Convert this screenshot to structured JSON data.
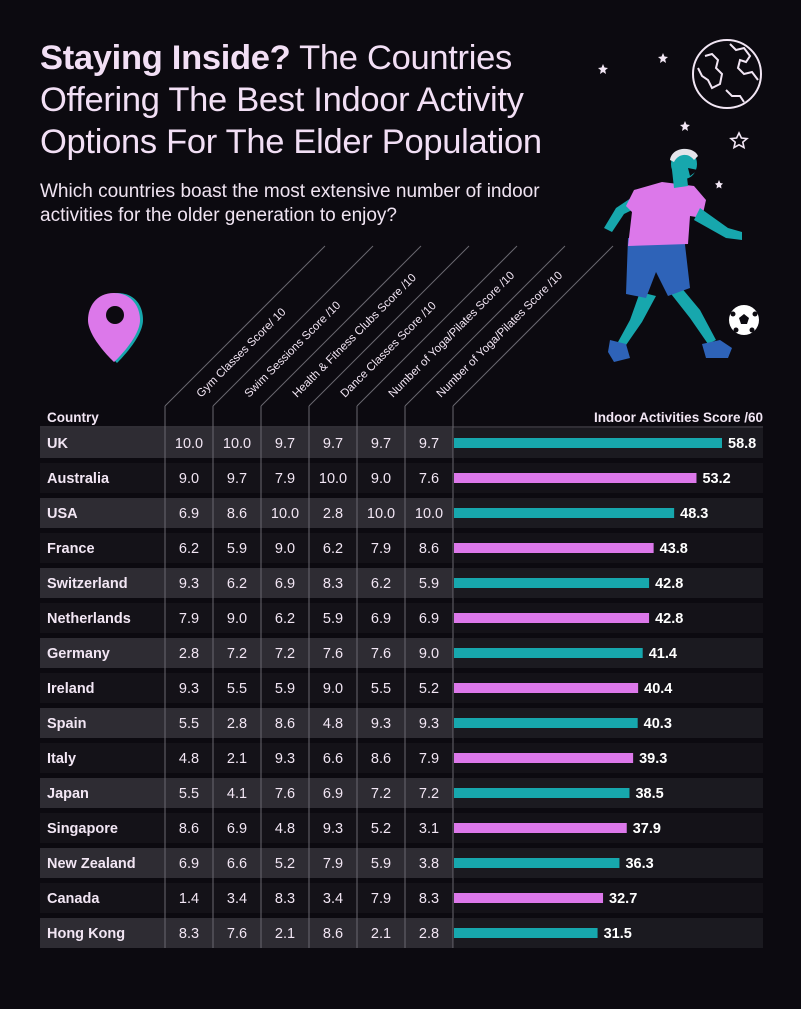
{
  "title": {
    "bold": "Staying Inside?",
    "rest": "The Countries Offering The Best Indoor Activity Options For The Elder Population"
  },
  "subtitle": "Which countries boast the most extensive number of indoor activities for the older generation to enjoy?",
  "colors": {
    "background": "#0c0a10",
    "teal": "#17a7ad",
    "pink": "#dc78ea",
    "row_even": "#2e2c33",
    "row_odd": "#141218",
    "text": "#f2e6f4"
  },
  "chart_data": {
    "type": "table",
    "title": "Indoor Activities Score /60",
    "country_header": "Country",
    "score_header": "Indoor Activities Score /60",
    "columns": [
      "Gym Classes Score/ 10",
      "Swim Sessions Score /10",
      "Health & Fitness Clubs Score /10",
      "Dance Classes Score /10",
      "Number of Yoga/Pilates Score /10",
      "Number of Yoga/Pilates Score /10"
    ],
    "bar_max": 60,
    "rows": [
      {
        "country": "UK",
        "values": [
          "10.0",
          "10.0",
          "9.7",
          "9.7",
          "9.7",
          "9.7"
        ],
        "total": 58.8,
        "total_label": "58.8"
      },
      {
        "country": "Australia",
        "values": [
          "9.0",
          "9.7",
          "7.9",
          "10.0",
          "9.0",
          "7.6"
        ],
        "total": 53.2,
        "total_label": "53.2"
      },
      {
        "country": "USA",
        "values": [
          "6.9",
          "8.6",
          "10.0",
          "2.8",
          "10.0",
          "10.0"
        ],
        "total": 48.3,
        "total_label": "48.3"
      },
      {
        "country": "France",
        "values": [
          "6.2",
          "5.9",
          "9.0",
          "6.2",
          "7.9",
          "8.6"
        ],
        "total": 43.8,
        "total_label": "43.8"
      },
      {
        "country": "Switzerland",
        "values": [
          "9.3",
          "6.2",
          "6.9",
          "8.3",
          "6.2",
          "5.9"
        ],
        "total": 42.8,
        "total_label": "42.8"
      },
      {
        "country": "Netherlands",
        "values": [
          "7.9",
          "9.0",
          "6.2",
          "5.9",
          "6.9",
          "6.9"
        ],
        "total": 42.8,
        "total_label": "42.8"
      },
      {
        "country": "Germany",
        "values": [
          "2.8",
          "7.2",
          "7.2",
          "7.6",
          "7.6",
          "9.0"
        ],
        "total": 41.4,
        "total_label": "41.4"
      },
      {
        "country": "Ireland",
        "values": [
          "9.3",
          "5.5",
          "5.9",
          "9.0",
          "5.5",
          "5.2"
        ],
        "total": 40.4,
        "total_label": "40.4"
      },
      {
        "country": "Spain",
        "values": [
          "5.5",
          "2.8",
          "8.6",
          "4.8",
          "9.3",
          "9.3"
        ],
        "total": 40.3,
        "total_label": "40.3"
      },
      {
        "country": "Italy",
        "values": [
          "4.8",
          "2.1",
          "9.3",
          "6.6",
          "8.6",
          "7.9"
        ],
        "total": 39.3,
        "total_label": "39.3"
      },
      {
        "country": "Japan",
        "values": [
          "5.5",
          "4.1",
          "7.6",
          "6.9",
          "7.2",
          "7.2"
        ],
        "total": 38.5,
        "total_label": "38.5"
      },
      {
        "country": "Singapore",
        "values": [
          "8.6",
          "6.9",
          "4.8",
          "9.3",
          "5.2",
          "3.1"
        ],
        "total": 37.9,
        "total_label": "37.9"
      },
      {
        "country": "New Zealand",
        "values": [
          "6.9",
          "6.6",
          "5.2",
          "7.9",
          "5.9",
          "3.8"
        ],
        "total": 36.3,
        "total_label": "36.3"
      },
      {
        "country": "Canada",
        "values": [
          "1.4",
          "3.4",
          "8.3",
          "3.4",
          "7.9",
          "8.3"
        ],
        "total": 32.7,
        "total_label": "32.7"
      },
      {
        "country": "Hong Kong",
        "values": [
          "8.3",
          "7.6",
          "2.1",
          "8.6",
          "2.1",
          "2.8"
        ],
        "total": 31.5,
        "total_label": "31.5"
      }
    ]
  }
}
